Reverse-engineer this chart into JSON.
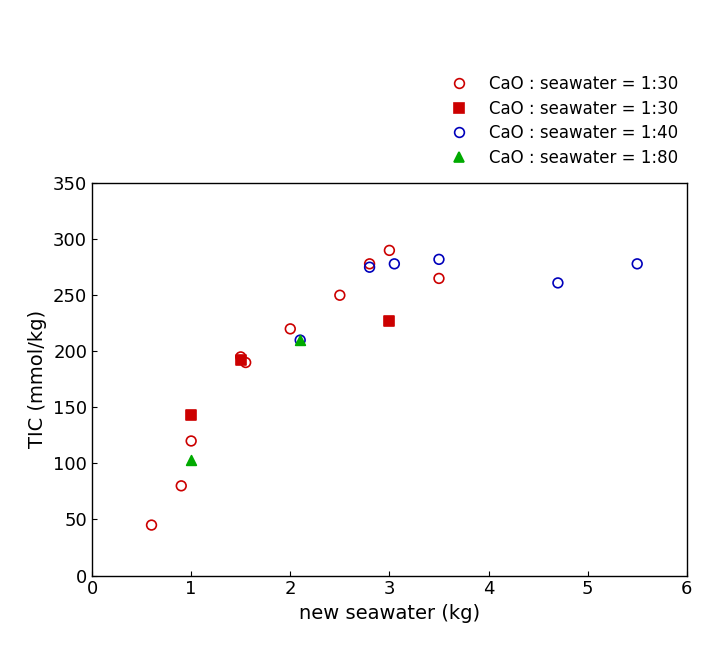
{
  "series": [
    {
      "label": "CaO : seawater = 1:30",
      "marker": "o",
      "facecolor": "none",
      "edgecolor": "#cc0000",
      "x": [
        0.6,
        0.9,
        1.0,
        1.5,
        1.55,
        2.0,
        2.5,
        2.8,
        3.0,
        3.5
      ],
      "y": [
        45,
        80,
        120,
        195,
        190,
        220,
        250,
        278,
        290,
        265
      ]
    },
    {
      "label": "CaO : seawater = 1:30",
      "marker": "s",
      "facecolor": "#cc0000",
      "edgecolor": "#cc0000",
      "x": [
        1.0,
        1.5,
        3.0
      ],
      "y": [
        143,
        192,
        227
      ]
    },
    {
      "label": "CaO : seawater = 1:40",
      "marker": "o",
      "facecolor": "none",
      "edgecolor": "#0000bb",
      "x": [
        2.1,
        2.8,
        3.05,
        3.5,
        4.7,
        5.5
      ],
      "y": [
        210,
        275,
        278,
        282,
        261,
        278
      ]
    },
    {
      "label": "CaO : seawater = 1:80",
      "marker": "^",
      "facecolor": "#00aa00",
      "edgecolor": "#00aa00",
      "x": [
        1.0,
        2.1
      ],
      "y": [
        103,
        210
      ]
    }
  ],
  "xlabel": "new seawater (kg)",
  "ylabel": "TIC (mmol/kg)",
  "xlim": [
    0,
    6
  ],
  "ylim": [
    0,
    350
  ],
  "xticks": [
    0,
    1,
    2,
    3,
    4,
    5,
    6
  ],
  "yticks": [
    0,
    50,
    100,
    150,
    200,
    250,
    300,
    350
  ],
  "marker_size": 7,
  "axis_fontsize": 14,
  "tick_fontsize": 13,
  "legend_fontsize": 12
}
